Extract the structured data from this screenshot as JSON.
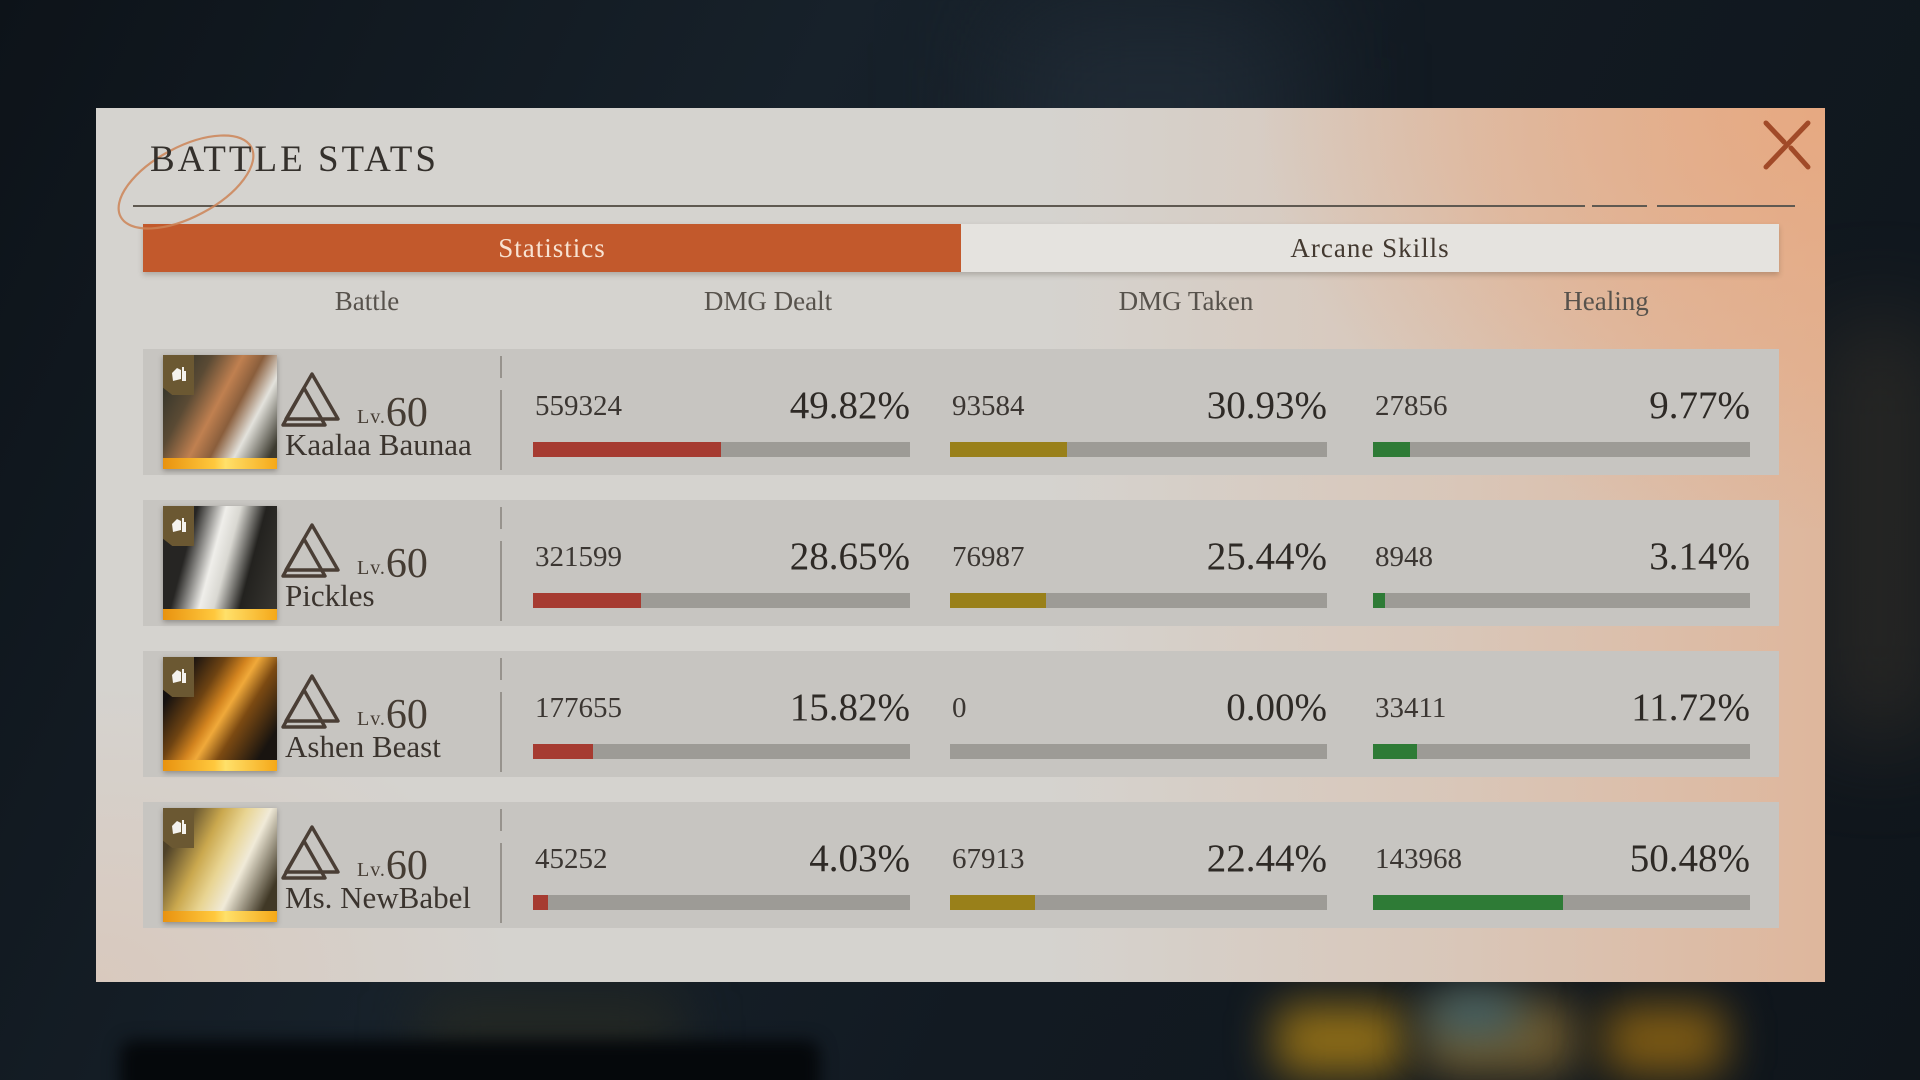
{
  "window": {
    "title": "BATTLE STATS"
  },
  "tabs": {
    "statistics": {
      "label": "Statistics",
      "active": true
    },
    "arcane": {
      "label": "Arcane Skills",
      "active": false
    }
  },
  "columns": {
    "battle": "Battle",
    "dmg_dealt": "DMG Dealt",
    "dmg_taken": "DMG Taken",
    "healing": "Healing"
  },
  "colors": {
    "accent_orange": "#c2592c",
    "close_x": "#a14a28",
    "bar_track": "#9d9b96",
    "bar_dmg_dealt": "#a63b31",
    "bar_dmg_taken": "#99801a",
    "bar_healing": "#2e7b36"
  },
  "rows": [
    {
      "name": "Kaalaa Baunaa",
      "level_label": "Lv.",
      "level": "60",
      "dmg_dealt": {
        "value": "559324",
        "pct": "49.82%",
        "pct_num": 49.82
      },
      "dmg_taken": {
        "value": "93584",
        "pct": "30.93%",
        "pct_num": 30.93
      },
      "healing": {
        "value": "27856",
        "pct": "9.77%",
        "pct_num": 9.77
      }
    },
    {
      "name": "Pickles",
      "level_label": "Lv.",
      "level": "60",
      "dmg_dealt": {
        "value": "321599",
        "pct": "28.65%",
        "pct_num": 28.65
      },
      "dmg_taken": {
        "value": "76987",
        "pct": "25.44%",
        "pct_num": 25.44
      },
      "healing": {
        "value": "8948",
        "pct": "3.14%",
        "pct_num": 3.14
      }
    },
    {
      "name": "Ashen Beast",
      "level_label": "Lv.",
      "level": "60",
      "dmg_dealt": {
        "value": "177655",
        "pct": "15.82%",
        "pct_num": 15.82
      },
      "dmg_taken": {
        "value": "0",
        "pct": "0.00%",
        "pct_num": 0
      },
      "healing": {
        "value": "33411",
        "pct": "11.72%",
        "pct_num": 11.72
      }
    },
    {
      "name": "Ms. NewBabel",
      "level_label": "Lv.",
      "level": "60",
      "dmg_dealt": {
        "value": "45252",
        "pct": "4.03%",
        "pct_num": 4.03
      },
      "dmg_taken": {
        "value": "67913",
        "pct": "22.44%",
        "pct_num": 22.44
      },
      "healing": {
        "value": "143968",
        "pct": "50.48%",
        "pct_num": 50.48
      }
    }
  ]
}
